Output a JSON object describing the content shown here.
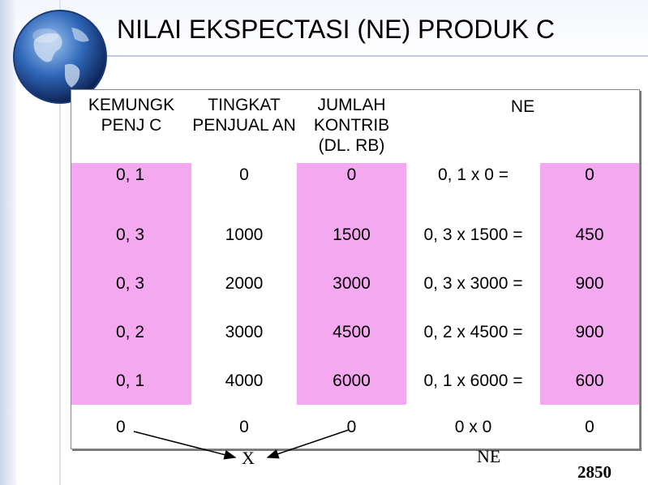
{
  "slide": {
    "title": "NILAI EKSPECTASI (NE) PRODUK C"
  },
  "table": {
    "headers": {
      "col1": "KEMUNGK PENJ C",
      "col2": "TINGKAT PENJUAL AN",
      "col3": "JUMLAH KONTRIB (DL. RB)",
      "col4": "NE"
    },
    "rows": [
      {
        "prob": "0, 1",
        "sales": "0",
        "contrib": "0",
        "calc": "0, 1 x 0  =",
        "ne": "0"
      },
      {
        "prob": "0, 3",
        "sales": "1000",
        "contrib": "1500",
        "calc": "0, 3 x 1500 =",
        "ne": "450"
      },
      {
        "prob": "0, 3",
        "sales": "2000",
        "contrib": "3000",
        "calc": "0, 3 x 3000 =",
        "ne": "900"
      },
      {
        "prob": "0, 2",
        "sales": "3000",
        "contrib": "4500",
        "calc": "0, 2 x 4500 =",
        "ne": "900"
      },
      {
        "prob": "0, 1",
        "sales": "4000",
        "contrib": "6000",
        "calc": "0, 1 x 6000 =",
        "ne": "600"
      },
      {
        "prob": "0",
        "sales": "0",
        "contrib": "0",
        "calc": "0 x 0",
        "ne": "0"
      }
    ]
  },
  "annotations": {
    "x_label": "X",
    "ne_label": "NE",
    "total": "2850"
  },
  "colors": {
    "pink": "#f3a8f0",
    "accent": "#2b4f8f"
  }
}
